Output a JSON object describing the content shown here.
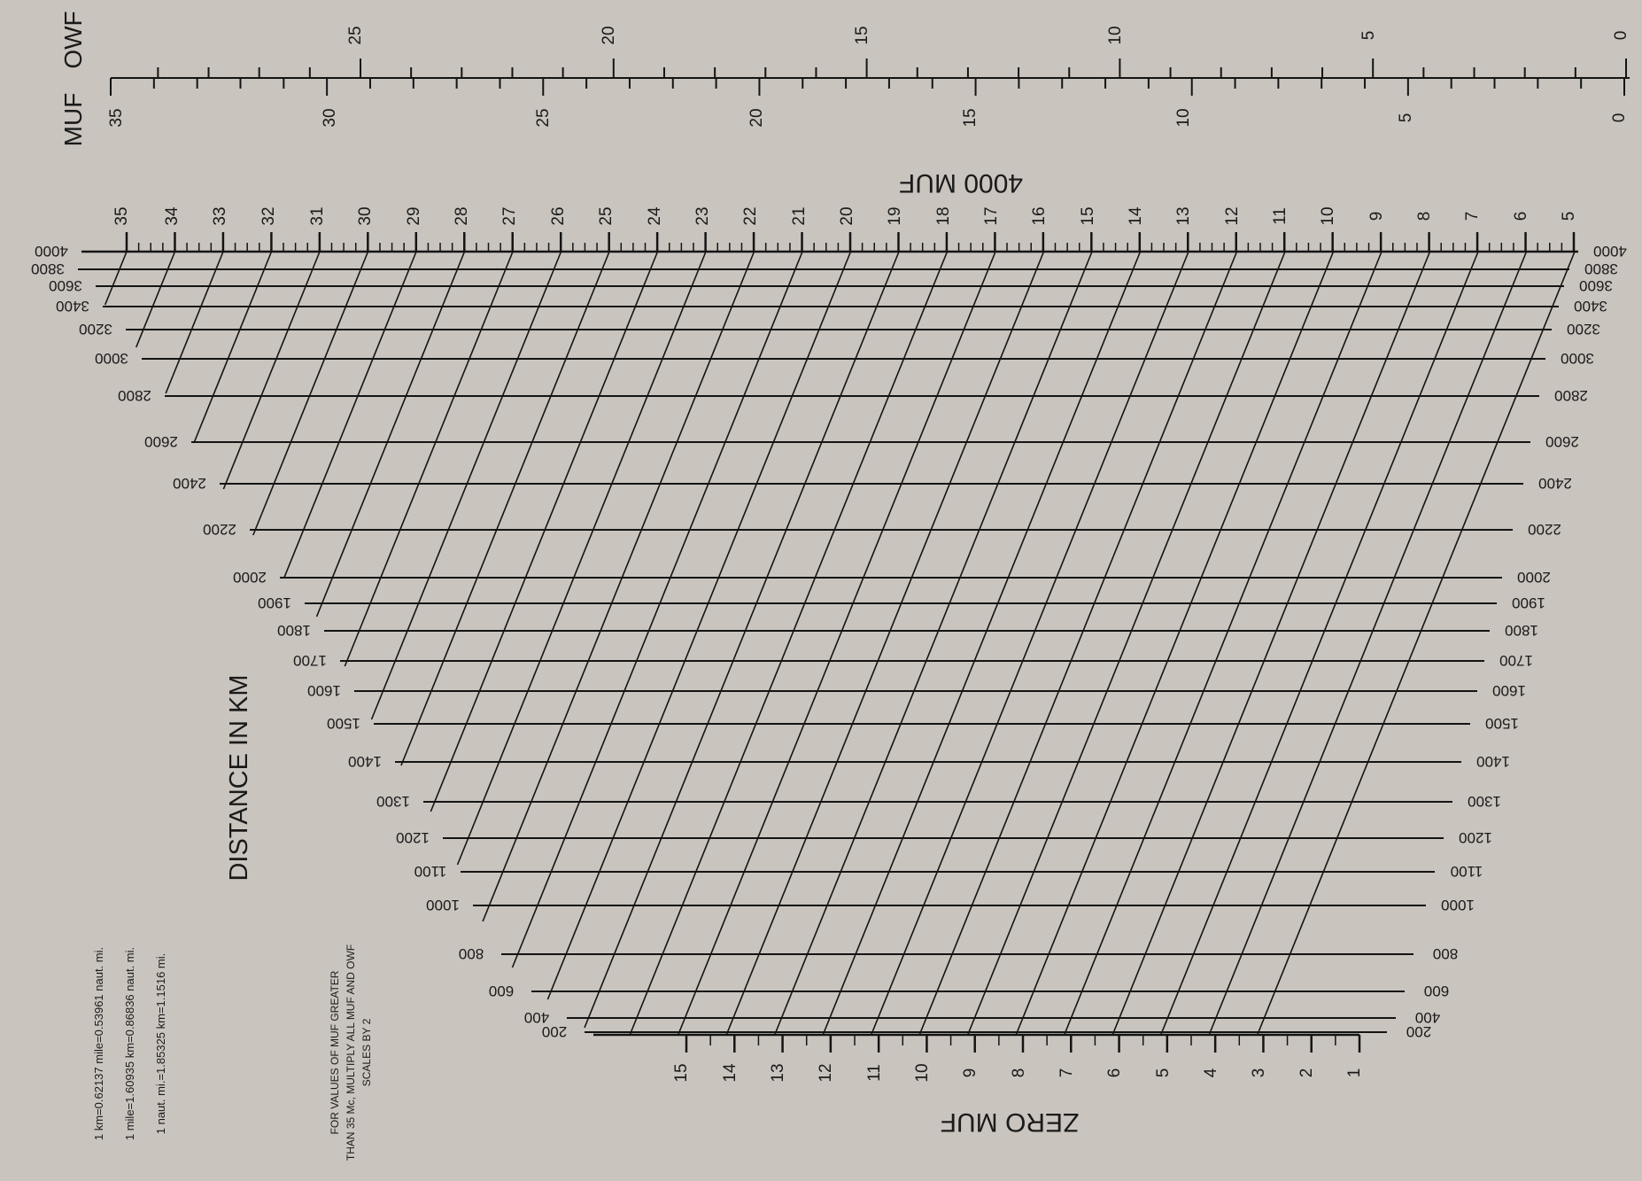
{
  "scales": {
    "muf_label": "MUF",
    "owf_label": "OWF",
    "muf_scale_labels": [
      "35",
      "30",
      "25",
      "20",
      "15",
      "10",
      "5",
      "0"
    ],
    "owf_scale_labels": [
      "25",
      "20",
      "15",
      "10",
      "5",
      "0"
    ]
  },
  "top_scale": {
    "title": "4000 MUF",
    "labels": [
      "35",
      "34",
      "33",
      "32",
      "31",
      "30",
      "29",
      "28",
      "27",
      "26",
      "25",
      "24",
      "23",
      "22",
      "21",
      "20",
      "19",
      "18",
      "17",
      "16",
      "15",
      "14",
      "13",
      "12",
      "11",
      "10",
      "9",
      "8",
      "7",
      "6",
      "5"
    ]
  },
  "bottom_scale": {
    "title": "ZERO MUF",
    "labels": [
      "15",
      "14",
      "13",
      "12",
      "11",
      "10",
      "9",
      "8",
      "7",
      "6",
      "5",
      "4",
      "3",
      "2",
      "1"
    ]
  },
  "distance_axis": {
    "title": "DISTANCE IN KM",
    "values": [
      "4000",
      "3800",
      "3600",
      "3400",
      "3200",
      "3000",
      "2800",
      "2600",
      "2400",
      "2200",
      "2000",
      "1900",
      "1800",
      "1700",
      "1600",
      "1500",
      "1400",
      "1300",
      "1200",
      "1100",
      "1000",
      "800",
      "600",
      "400",
      "200"
    ]
  },
  "notes": {
    "scaling": [
      "FOR VALUES OF MUF GREATER",
      "THAN 35 Mc, MULTIPLY ALL MUF AND OWF",
      "SCALES BY 2"
    ],
    "conversions": [
      "1 km=0.62137 mile=0.53961 naut. mi.",
      "1 mile=1.60935 km=0.86836 naut. mi.",
      "1 naut. mi.=1.85325 km=1.1516 mi."
    ]
  },
  "colors": {
    "paper": "#c9c4be",
    "ink": "#141414"
  }
}
